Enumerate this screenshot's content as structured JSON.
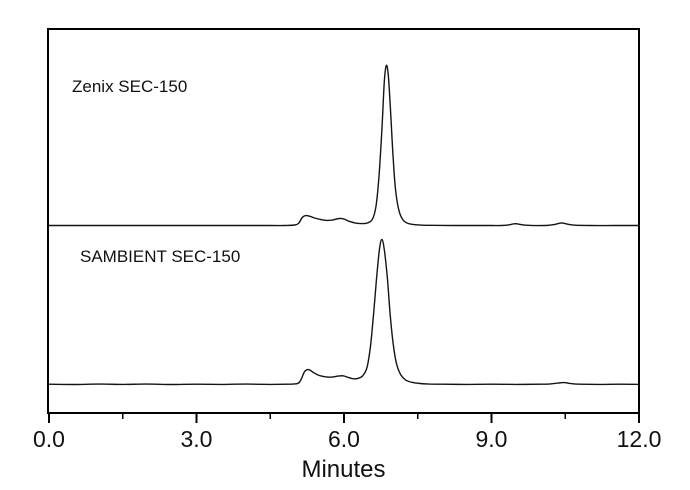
{
  "figure": {
    "background_color": "#ffffff",
    "frame_color": "#000000",
    "text_color": "#111111"
  },
  "chart_data": {
    "type": "line",
    "title": "",
    "xlabel": "Minutes",
    "ylabel": "",
    "x_range": [
      0,
      12
    ],
    "grid": false,
    "legend": false,
    "line_color": "#141414",
    "x_major_ticks": [
      {
        "value": 0,
        "label": "0.0"
      },
      {
        "value": 3,
        "label": "3.0"
      },
      {
        "value": 6,
        "label": "6.0"
      },
      {
        "value": 9,
        "label": "9.0"
      },
      {
        "value": 12,
        "label": "12.0"
      }
    ],
    "x_minor_tick_values": [
      1.5,
      4.5,
      7.5,
      10.5
    ],
    "series": [
      {
        "name": "zenix-sec-150",
        "label": "Zenix SEC-150",
        "main_peak_minutes": 6.86,
        "points": [
          [
            0,
            0
          ],
          [
            0.5,
            0
          ],
          [
            1,
            0
          ],
          [
            1.5,
            0
          ],
          [
            2,
            0
          ],
          [
            2.5,
            0
          ],
          [
            3,
            0
          ],
          [
            3.5,
            0
          ],
          [
            4,
            0
          ],
          [
            4.5,
            0
          ],
          [
            4.8,
            0
          ],
          [
            5.0,
            0.003
          ],
          [
            5.08,
            0.015
          ],
          [
            5.15,
            0.05
          ],
          [
            5.22,
            0.062
          ],
          [
            5.3,
            0.058
          ],
          [
            5.4,
            0.047
          ],
          [
            5.52,
            0.038
          ],
          [
            5.65,
            0.032
          ],
          [
            5.78,
            0.035
          ],
          [
            5.9,
            0.044
          ],
          [
            6.0,
            0.04
          ],
          [
            6.1,
            0.027
          ],
          [
            6.22,
            0.016
          ],
          [
            6.35,
            0.012
          ],
          [
            6.48,
            0.016
          ],
          [
            6.58,
            0.04
          ],
          [
            6.65,
            0.12
          ],
          [
            6.71,
            0.3
          ],
          [
            6.77,
            0.6
          ],
          [
            6.82,
            0.9
          ],
          [
            6.86,
            1.0
          ],
          [
            6.9,
            0.94
          ],
          [
            6.95,
            0.7
          ],
          [
            7.0,
            0.42
          ],
          [
            7.05,
            0.22
          ],
          [
            7.12,
            0.09
          ],
          [
            7.2,
            0.035
          ],
          [
            7.3,
            0.013
          ],
          [
            7.45,
            0.005
          ],
          [
            7.6,
            0.002
          ],
          [
            7.8,
            0.001
          ],
          [
            8.2,
            0
          ],
          [
            8.6,
            0
          ],
          [
            9.0,
            0
          ],
          [
            9.2,
            0
          ],
          [
            9.35,
            0.004
          ],
          [
            9.48,
            0.011
          ],
          [
            9.62,
            0.005
          ],
          [
            9.75,
            0.001
          ],
          [
            10.1,
            0
          ],
          [
            10.28,
            0.006
          ],
          [
            10.42,
            0.016
          ],
          [
            10.55,
            0.008
          ],
          [
            10.7,
            0.002
          ],
          [
            11.0,
            0
          ],
          [
            11.5,
            0
          ],
          [
            12,
            0
          ]
        ]
      },
      {
        "name": "sambient-sec-150",
        "label": "SAMBIENT SEC-150",
        "main_peak_minutes": 6.77,
        "points": [
          [
            0,
            0.002
          ],
          [
            0.5,
            0
          ],
          [
            1,
            0.003
          ],
          [
            1.5,
            0.001
          ],
          [
            2,
            0.003
          ],
          [
            2.5,
            0
          ],
          [
            3,
            0.002
          ],
          [
            3.5,
            0.001
          ],
          [
            4,
            0.003
          ],
          [
            4.5,
            0.001
          ],
          [
            4.85,
            0.002
          ],
          [
            5.05,
            0.006
          ],
          [
            5.12,
            0.03
          ],
          [
            5.2,
            0.09
          ],
          [
            5.28,
            0.103
          ],
          [
            5.38,
            0.082
          ],
          [
            5.5,
            0.062
          ],
          [
            5.62,
            0.053
          ],
          [
            5.75,
            0.051
          ],
          [
            5.88,
            0.058
          ],
          [
            5.98,
            0.06
          ],
          [
            6.08,
            0.05
          ],
          [
            6.18,
            0.04
          ],
          [
            6.28,
            0.042
          ],
          [
            6.38,
            0.06
          ],
          [
            6.47,
            0.12
          ],
          [
            6.54,
            0.27
          ],
          [
            6.6,
            0.48
          ],
          [
            6.66,
            0.72
          ],
          [
            6.72,
            0.93
          ],
          [
            6.77,
            1.0
          ],
          [
            6.82,
            0.93
          ],
          [
            6.88,
            0.74
          ],
          [
            6.94,
            0.48
          ],
          [
            7.0,
            0.28
          ],
          [
            7.07,
            0.14
          ],
          [
            7.15,
            0.07
          ],
          [
            7.25,
            0.032
          ],
          [
            7.38,
            0.015
          ],
          [
            7.55,
            0.007
          ],
          [
            7.75,
            0.003
          ],
          [
            8.0,
            0.002
          ],
          [
            8.5,
            0.001
          ],
          [
            9.0,
            0.002
          ],
          [
            9.5,
            0.001
          ],
          [
            10.0,
            0.002
          ],
          [
            10.2,
            0.004
          ],
          [
            10.35,
            0.01
          ],
          [
            10.48,
            0.013
          ],
          [
            10.62,
            0.006
          ],
          [
            10.8,
            0.002
          ],
          [
            11.2,
            0.001
          ],
          [
            11.6,
            0.002
          ],
          [
            12,
            0.001
          ]
        ]
      }
    ]
  }
}
